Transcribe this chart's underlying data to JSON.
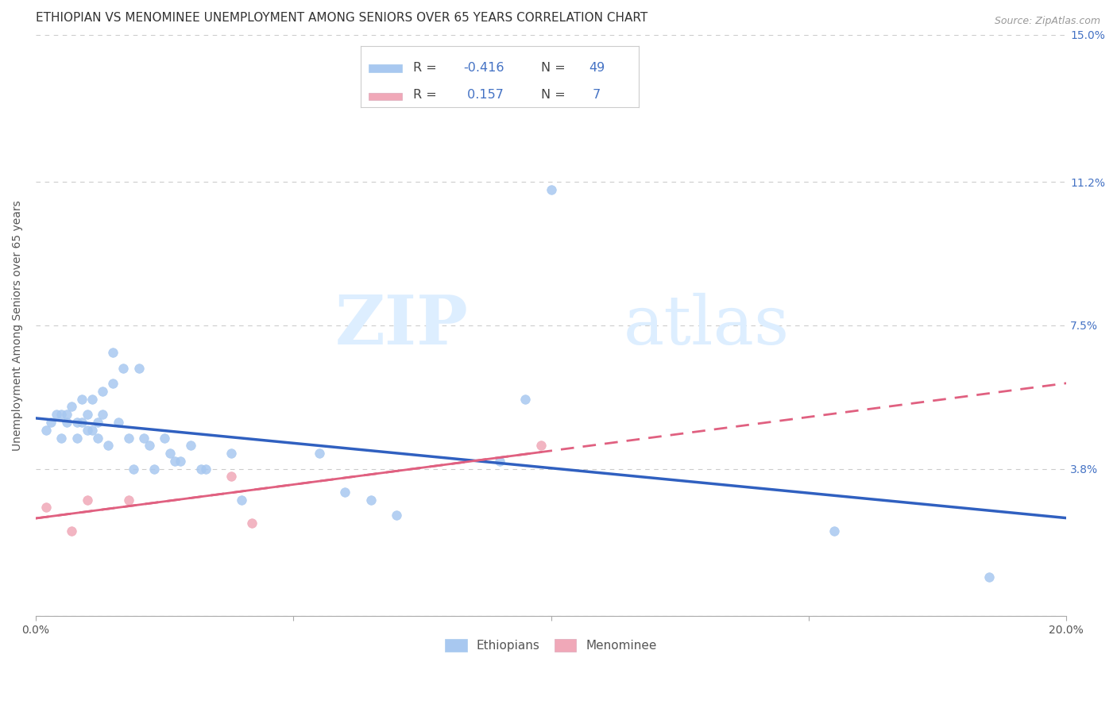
{
  "title": "ETHIOPIAN VS MENOMINEE UNEMPLOYMENT AMONG SENIORS OVER 65 YEARS CORRELATION CHART",
  "source": "Source: ZipAtlas.com",
  "ylabel": "Unemployment Among Seniors over 65 years",
  "xlim": [
    0.0,
    0.2
  ],
  "ylim": [
    0.0,
    0.15
  ],
  "right_ytick_labels": [
    "",
    "3.8%",
    "7.5%",
    "11.2%",
    "15.0%"
  ],
  "grid_color": "#cccccc",
  "background_color": "#ffffff",
  "watermark_zip": "ZIP",
  "watermark_atlas": "atlas",
  "ethiopian_color": "#a8c8f0",
  "menominee_color": "#f0a8b8",
  "ethiopian_line_color": "#3060c0",
  "menominee_line_color": "#e06080",
  "legend_R_color": "#4472c4",
  "R_ethiopian": -0.416,
  "N_ethiopian": 49,
  "R_menominee": 0.157,
  "N_menominee": 7,
  "ethiopian_x": [
    0.002,
    0.003,
    0.004,
    0.005,
    0.005,
    0.006,
    0.006,
    0.007,
    0.008,
    0.008,
    0.009,
    0.009,
    0.01,
    0.01,
    0.011,
    0.011,
    0.012,
    0.012,
    0.013,
    0.013,
    0.014,
    0.015,
    0.015,
    0.016,
    0.017,
    0.018,
    0.019,
    0.02,
    0.021,
    0.022,
    0.023,
    0.025,
    0.026,
    0.027,
    0.028,
    0.03,
    0.032,
    0.033,
    0.038,
    0.04,
    0.055,
    0.06,
    0.065,
    0.07,
    0.09,
    0.095,
    0.1,
    0.155,
    0.185
  ],
  "ethiopian_y": [
    0.048,
    0.05,
    0.052,
    0.052,
    0.046,
    0.05,
    0.052,
    0.054,
    0.046,
    0.05,
    0.05,
    0.056,
    0.052,
    0.048,
    0.056,
    0.048,
    0.05,
    0.046,
    0.058,
    0.052,
    0.044,
    0.06,
    0.068,
    0.05,
    0.064,
    0.046,
    0.038,
    0.064,
    0.046,
    0.044,
    0.038,
    0.046,
    0.042,
    0.04,
    0.04,
    0.044,
    0.038,
    0.038,
    0.042,
    0.03,
    0.042,
    0.032,
    0.03,
    0.026,
    0.04,
    0.056,
    0.11,
    0.022,
    0.01
  ],
  "menominee_x": [
    0.002,
    0.007,
    0.01,
    0.018,
    0.038,
    0.042,
    0.098
  ],
  "menominee_y": [
    0.028,
    0.022,
    0.03,
    0.03,
    0.036,
    0.024,
    0.044
  ],
  "title_fontsize": 11,
  "axis_label_fontsize": 10,
  "tick_fontsize": 10,
  "legend_fontsize": 11
}
